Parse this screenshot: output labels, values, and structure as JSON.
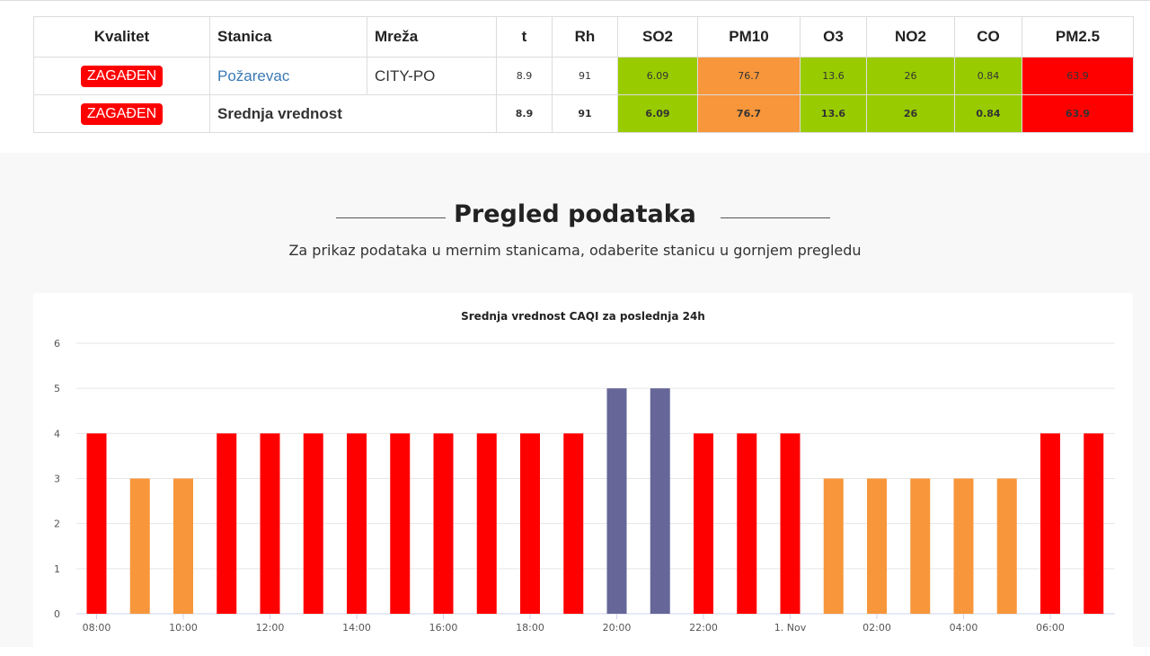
{
  "table": {
    "headers": [
      "Kvalitet",
      "Stanica",
      "Mreža",
      "t",
      "Rh",
      "SO2",
      "PM10",
      "O3",
      "NO2",
      "CO",
      "PM2.5"
    ],
    "rows": [
      {
        "quality": "ZAGAĐEN",
        "station": "Požarevac",
        "network": "CITY-PO",
        "t": "8.9",
        "rh": "91",
        "so2": "6.09",
        "pm10": "76.7",
        "o3": "13.6",
        "no2": "26",
        "co": "0.84",
        "pm25": "63.9"
      },
      {
        "quality": "ZAGAĐEN",
        "station": "Srednja vrednost",
        "t": "8.9",
        "rh": "91",
        "so2": "6.09",
        "pm10": "76.7",
        "o3": "13.6",
        "no2": "26",
        "co": "0.84",
        "pm25": "63.9"
      }
    ],
    "colors": {
      "good": "#99cc00",
      "medium": "#f7963b",
      "bad": "#ff0000",
      "badge": "#ff0000",
      "link": "#3a79b5"
    }
  },
  "section": {
    "title": "Pregled podataka",
    "subtitle": "Za prikaz podataka u mernim stanicama, odaberite stanicu u gornjem pregledu"
  },
  "chart_data": {
    "type": "bar",
    "title": "Srednja vrednost CAQI za poslednja 24h",
    "xlabel": "",
    "ylabel": "",
    "ylim": [
      0,
      6
    ],
    "yticks": [
      0,
      1,
      2,
      3,
      4,
      5,
      6
    ],
    "grid": true,
    "legend": "none",
    "categories": [
      "08:00",
      "09:00",
      "10:00",
      "11:00",
      "12:00",
      "13:00",
      "14:00",
      "15:00",
      "16:00",
      "17:00",
      "18:00",
      "19:00",
      "20:00",
      "21:00",
      "22:00",
      "23:00",
      "00:00",
      "01:00",
      "02:00",
      "03:00",
      "04:00",
      "05:00",
      "06:00",
      "07:00"
    ],
    "tick_labels": [
      "08:00",
      "10:00",
      "12:00",
      "14:00",
      "16:00",
      "18:00",
      "20:00",
      "22:00",
      "1. Nov",
      "02:00",
      "04:00",
      "06:00"
    ],
    "values": [
      4,
      3,
      3,
      4,
      4,
      4,
      4,
      4,
      4,
      4,
      4,
      4,
      5,
      5,
      4,
      4,
      4,
      3,
      3,
      3,
      3,
      3,
      4,
      4
    ],
    "value_colors": {
      "3": "#f7963b",
      "4": "#ff0000",
      "5": "#666699"
    }
  }
}
